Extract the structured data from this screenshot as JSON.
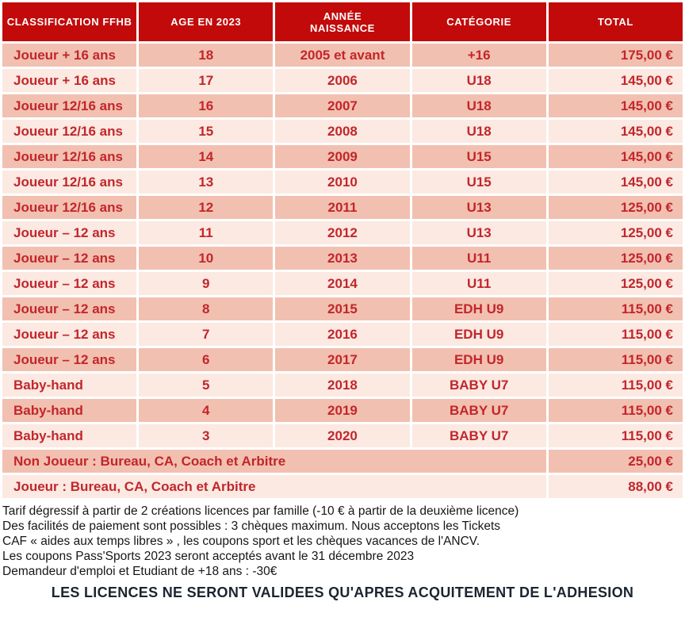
{
  "colors": {
    "header_bg": "#c20a0a",
    "row_dark_bg": "#f2c0b0",
    "row_light_bg": "#fbe9e2",
    "cell_text": "#c2262b",
    "header_text": "#ffffff",
    "notes_text": "#161616",
    "banner_text": "#1c2430"
  },
  "table": {
    "columns": [
      "CLASSIFICATION FFHB",
      "AGE EN 2023",
      "ANNÉE\nNAISSANCE",
      "CATÉGORIE",
      "TOTAL"
    ],
    "rows": [
      {
        "classification": "Joueur + 16 ans",
        "age": "18",
        "annee": "2005 et avant",
        "categorie": "+16",
        "total": "175,00 €"
      },
      {
        "classification": "Joueur + 16 ans",
        "age": "17",
        "annee": "2006",
        "categorie": "U18",
        "total": "145,00 €"
      },
      {
        "classification": "Joueur 12/16 ans",
        "age": "16",
        "annee": "2007",
        "categorie": "U18",
        "total": "145,00 €"
      },
      {
        "classification": "Joueur 12/16 ans",
        "age": "15",
        "annee": "2008",
        "categorie": "U18",
        "total": "145,00 €"
      },
      {
        "classification": "Joueur 12/16 ans",
        "age": "14",
        "annee": "2009",
        "categorie": "U15",
        "total": "145,00 €"
      },
      {
        "classification": "Joueur 12/16 ans",
        "age": "13",
        "annee": "2010",
        "categorie": "U15",
        "total": "145,00 €"
      },
      {
        "classification": "Joueur 12/16 ans",
        "age": "12",
        "annee": "2011",
        "categorie": "U13",
        "total": "125,00 €"
      },
      {
        "classification": "Joueur – 12 ans",
        "age": "11",
        "annee": "2012",
        "categorie": "U13",
        "total": "125,00 €"
      },
      {
        "classification": "Joueur – 12 ans",
        "age": "10",
        "annee": "2013",
        "categorie": "U11",
        "total": "125,00 €"
      },
      {
        "classification": "Joueur – 12 ans",
        "age": "9",
        "annee": "2014",
        "categorie": "U11",
        "total": "125,00 €"
      },
      {
        "classification": "Joueur – 12 ans",
        "age": "8",
        "annee": "2015",
        "categorie": "EDH U9",
        "total": "115,00 €"
      },
      {
        "classification": "Joueur – 12 ans",
        "age": "7",
        "annee": "2016",
        "categorie": "EDH U9",
        "total": "115,00 €"
      },
      {
        "classification": "Joueur – 12 ans",
        "age": "6",
        "annee": "2017",
        "categorie": "EDH U9",
        "total": "115,00 €"
      },
      {
        "classification": "Baby-hand",
        "age": "5",
        "annee": "2018",
        "categorie": "BABY U7",
        "total": "115,00 €"
      },
      {
        "classification": "Baby-hand",
        "age": "4",
        "annee": "2019",
        "categorie": "BABY U7",
        "total": "115,00 €"
      },
      {
        "classification": "Baby-hand",
        "age": "3",
        "annee": "2020",
        "categorie": "BABY U7",
        "total": "115,00 €"
      }
    ],
    "span_rows": [
      {
        "label": "Non Joueur : Bureau, CA, Coach et Arbitre",
        "total": "25,00 €"
      },
      {
        "label": "Joueur : Bureau, CA, Coach et Arbitre",
        "total": "88,00 €"
      }
    ]
  },
  "notes": {
    "lines": [
      "Tarif dégressif à partir de 2 créations licences par famille (-10 € à partir de la deuxième licence)",
      "Des facilités de paiement sont possibles : 3 chèques maximum. Nous acceptons les Tickets",
      "CAF « aides aux temps libres » , les coupons sport et les chèques vacances de l'ANCV.",
      "Les coupons Pass'Sports 2023 seront acceptés avant le 31 décembre 2023",
      "Demandeur d'emploi et Etudiant de +18 ans : -30€"
    ]
  },
  "footer": {
    "banner": "LES LICENCES NE SERONT VALIDEES QU'APRES ACQUITEMENT DE L'ADHESION"
  }
}
